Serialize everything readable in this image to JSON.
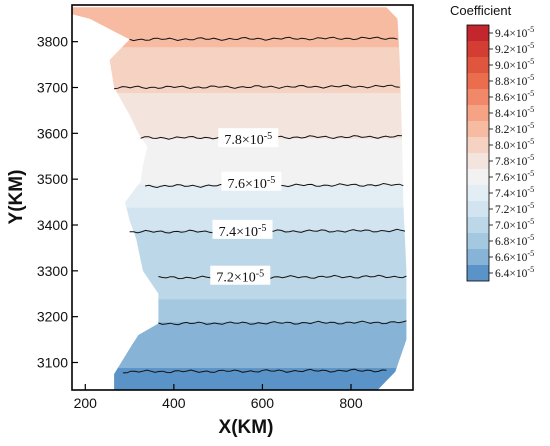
{
  "chart_data": {
    "type": "contour",
    "xlabel": "X(KM)",
    "ylabel": "Y(KM)",
    "xlim": [
      170,
      940
    ],
    "ylim": [
      3040,
      3880
    ],
    "x_ticks": [
      200,
      400,
      600,
      800
    ],
    "y_ticks": [
      3100,
      3200,
      3300,
      3400,
      3500,
      3600,
      3700,
      3800
    ],
    "legend": {
      "title": "Coefficient",
      "placement": "right",
      "levels": [
        {
          "label": "9.4×10⁻⁵",
          "value": 9.4,
          "color": "#c4262e"
        },
        {
          "label": "9.2×10⁻⁵",
          "value": 9.2,
          "color": "#d43d33"
        },
        {
          "label": "9.0×10⁻⁵",
          "value": 9.0,
          "color": "#e0553d"
        },
        {
          "label": "8.8×10⁻⁵",
          "value": 8.8,
          "color": "#ea6e4e"
        },
        {
          "label": "8.6×10⁻⁵",
          "value": 8.6,
          "color": "#f1886a"
        },
        {
          "label": "8.4×10⁻⁵",
          "value": 8.4,
          "color": "#f5a285"
        },
        {
          "label": "8.2×10⁻⁵",
          "value": 8.2,
          "color": "#f7bba2"
        },
        {
          "label": "8.0×10⁻⁵",
          "value": 8.0,
          "color": "#f6d2c3"
        },
        {
          "label": "7.8×10⁻⁵",
          "value": 7.8,
          "color": "#f3e4de"
        },
        {
          "label": "7.6×10⁻⁵",
          "value": 7.6,
          "color": "#f2f2f2"
        },
        {
          "label": "7.4×10⁻⁵",
          "value": 7.4,
          "color": "#e3edf4"
        },
        {
          "label": "7.2×10⁻⁵",
          "value": 7.2,
          "color": "#d1e4ef"
        },
        {
          "label": "7.0×10⁻⁵",
          "value": 7.0,
          "color": "#bcd7e8"
        },
        {
          "label": "6.8×10⁻⁵",
          "value": 6.8,
          "color": "#a4c8e0"
        },
        {
          "label": "6.6×10⁻⁵",
          "value": 6.6,
          "color": "#86b3d6"
        },
        {
          "label": "6.4×10⁻⁵",
          "value": 6.4,
          "color": "#5a93c7"
        }
      ]
    },
    "contour_lines": [
      {
        "y": 3805,
        "x_start": 300,
        "x_end": 905
      },
      {
        "y": 3700,
        "x_start": 265,
        "x_end": 910
      },
      {
        "y": 3590,
        "x_start": 325,
        "x_end": 915
      },
      {
        "y": 3485,
        "x_start": 335,
        "x_end": 918
      },
      {
        "y": 3385,
        "x_start": 300,
        "x_end": 922
      },
      {
        "y": 3285,
        "x_start": 365,
        "x_end": 925
      },
      {
        "y": 3185,
        "x_start": 365,
        "x_end": 925
      },
      {
        "y": 3080,
        "x_start": 285,
        "x_end": 880
      }
    ],
    "contour_labels": [
      {
        "text": "7.8×10⁻⁵",
        "x": 568,
        "y": 3585
      },
      {
        "text": "7.6×10⁻⁵",
        "x": 575,
        "y": 3490
      },
      {
        "text": "7.4×10⁻⁵",
        "x": 555,
        "y": 3385
      },
      {
        "text": "7.2×10⁻⁵",
        "x": 550,
        "y": 3285
      }
    ],
    "domain_outline": [
      [
        170,
        3875
      ],
      [
        880,
        3875
      ],
      [
        905,
        3850
      ],
      [
        910,
        3760
      ],
      [
        915,
        3600
      ],
      [
        918,
        3450
      ],
      [
        925,
        3300
      ],
      [
        925,
        3150
      ],
      [
        900,
        3080
      ],
      [
        860,
        3040
      ],
      [
        265,
        3040
      ],
      [
        265,
        3075
      ],
      [
        300,
        3130
      ],
      [
        320,
        3160
      ],
      [
        365,
        3185
      ],
      [
        365,
        3250
      ],
      [
        330,
        3300
      ],
      [
        315,
        3370
      ],
      [
        300,
        3410
      ],
      [
        290,
        3450
      ],
      [
        325,
        3495
      ],
      [
        330,
        3530
      ],
      [
        340,
        3570
      ],
      [
        320,
        3600
      ],
      [
        300,
        3640
      ],
      [
        265,
        3700
      ],
      [
        255,
        3760
      ],
      [
        300,
        3805
      ],
      [
        210,
        3850
      ],
      [
        170,
        3860
      ]
    ]
  }
}
